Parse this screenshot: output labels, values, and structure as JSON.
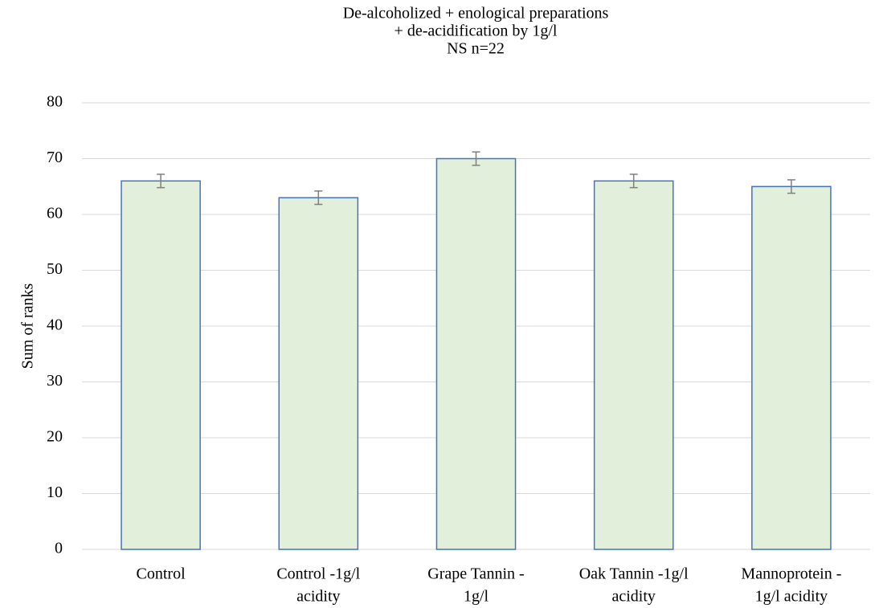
{
  "chart_data": {
    "type": "bar",
    "title": [
      "De-alcoholized + enological preparations",
      "+ de-acidification by 1g/l",
      "NS n=22"
    ],
    "y_label": "Sum of ranks",
    "categories": [
      [
        "Control"
      ],
      [
        "Control -1g/l",
        "acidity"
      ],
      [
        "Grape Tannin -",
        "1g/l"
      ],
      [
        "Oak Tannin -1g/l",
        "acidity"
      ],
      [
        "Mannoprotein -",
        "1g/l acidity"
      ]
    ],
    "values": [
      66,
      63,
      70,
      66,
      65
    ],
    "errors": [
      1.2,
      1.2,
      1.2,
      1.2,
      1.2
    ],
    "color": "#e2efda",
    "edge_color": "#4472c4",
    "error_color": "#7f7f7f",
    "ylim": [
      0,
      80
    ],
    "yticks": [
      0,
      10,
      20,
      30,
      40,
      50,
      60,
      70,
      80
    ],
    "grid": true
  }
}
